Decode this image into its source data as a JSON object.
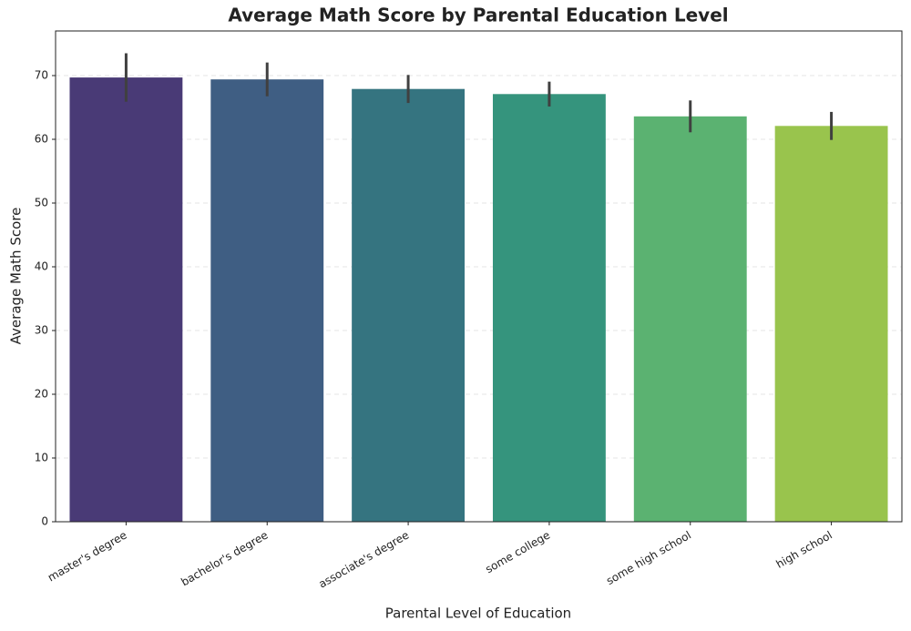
{
  "chart_data": {
    "type": "bar",
    "title": "Average Math Score by Parental Education Level",
    "x_label": "Parental Level of Education",
    "y_label": "Average Math Score",
    "categories": [
      "master's degree",
      "bachelor's degree",
      "associate's degree",
      "some college",
      "some high school",
      "high school"
    ],
    "values": [
      69.7,
      69.4,
      67.9,
      67.1,
      63.6,
      62.1
    ],
    "errors": [
      3.8,
      2.65,
      2.2,
      1.95,
      2.5,
      2.2
    ],
    "colors": [
      "#493a76",
      "#3f5e83",
      "#357480",
      "#35947d",
      "#5bb271",
      "#99c44d"
    ],
    "error_color": "#404040",
    "ylim": [
      0,
      77
    ],
    "yticks": [
      0,
      10,
      20,
      30,
      40,
      50,
      60,
      70
    ],
    "grid": true
  }
}
